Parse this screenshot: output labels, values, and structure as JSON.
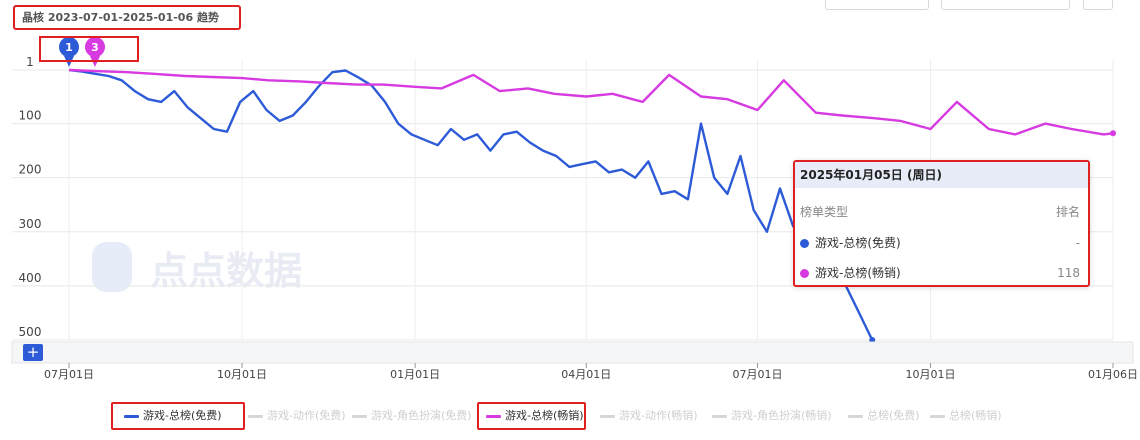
{
  "page": {
    "title": "晶核 2023-07-01-2025-01-06 趋势"
  },
  "watermark": {
    "text": "点点数据"
  },
  "markers": [
    {
      "label": "1",
      "color": "#2d5bd7"
    },
    {
      "label": "3",
      "color": "#d63ae0"
    }
  ],
  "colors": {
    "free": "#2d5bd7",
    "grossing": "#d63ae0",
    "inactive": "#d6d6d6"
  },
  "toolbar": {
    "add_label": "+"
  },
  "legend": [
    {
      "label": "游戏-总榜(免费)",
      "active": true,
      "color": "#2d5bd7"
    },
    {
      "label": "游戏-动作(免费)",
      "active": false
    },
    {
      "label": "游戏-角色扮演(免费)",
      "active": false
    },
    {
      "label": "游戏-总榜(畅销)",
      "active": true,
      "color": "#d63ae0"
    },
    {
      "label": "游戏-动作(畅销)",
      "active": false
    },
    {
      "label": "游戏-角色扮演(畅销)",
      "active": false
    },
    {
      "label": "总榜(免费)",
      "active": false
    },
    {
      "label": "总榜(畅销)",
      "active": false
    }
  ],
  "tooltip": {
    "date": "2025年01月05日 (周日)",
    "col_type": "榜单类型",
    "col_rank": "排名",
    "rows": [
      {
        "label": "游戏-总榜(免费)",
        "value": "-",
        "color": "#2d5bd7"
      },
      {
        "label": "游戏-总榜(畅销)",
        "value": "118",
        "color": "#d63ae0"
      }
    ]
  },
  "chart_data": {
    "type": "line",
    "title": "晶核 2023-07-01-2025-01-06 趋势",
    "x_range": [
      "2023-07-01",
      "2025-01-06"
    ],
    "x_tick_labels": [
      "07月01日",
      "10月01日",
      "01月01日",
      "04月01日",
      "07月01日",
      "10月01日",
      "01月06日"
    ],
    "x_tick_dates": [
      "2023-07-01",
      "2023-10-01",
      "2024-01-01",
      "2024-04-01",
      "2024-07-01",
      "2024-10-01",
      "2025-01-06"
    ],
    "y_tick_labels": [
      "1",
      "100",
      "200",
      "300",
      "400",
      "500"
    ],
    "y_ticks": [
      1,
      100,
      200,
      300,
      400,
      500
    ],
    "ylim": [
      1,
      500
    ],
    "y_inverted": true,
    "grid": true,
    "legend_position": "bottom",
    "series": [
      {
        "name": "游戏-总榜(免费)",
        "color": "#2d5bd7",
        "points": [
          [
            "2023-07-01",
            1
          ],
          [
            "2023-07-08",
            4
          ],
          [
            "2023-07-15",
            8
          ],
          [
            "2023-07-22",
            12
          ],
          [
            "2023-07-29",
            20
          ],
          [
            "2023-08-05",
            40
          ],
          [
            "2023-08-12",
            55
          ],
          [
            "2023-08-19",
            60
          ],
          [
            "2023-08-26",
            40
          ],
          [
            "2023-09-02",
            70
          ],
          [
            "2023-09-09",
            90
          ],
          [
            "2023-09-16",
            110
          ],
          [
            "2023-09-23",
            115
          ],
          [
            "2023-09-30",
            60
          ],
          [
            "2023-10-07",
            40
          ],
          [
            "2023-10-14",
            75
          ],
          [
            "2023-10-21",
            95
          ],
          [
            "2023-10-28",
            85
          ],
          [
            "2023-11-04",
            60
          ],
          [
            "2023-11-11",
            30
          ],
          [
            "2023-11-18",
            5
          ],
          [
            "2023-11-25",
            2
          ],
          [
            "2023-12-02",
            15
          ],
          [
            "2023-12-09",
            30
          ],
          [
            "2023-12-16",
            60
          ],
          [
            "2023-12-23",
            100
          ],
          [
            "2023-12-30",
            120
          ],
          [
            "2024-01-06",
            130
          ],
          [
            "2024-01-13",
            140
          ],
          [
            "2024-01-20",
            110
          ],
          [
            "2024-01-27",
            130
          ],
          [
            "2024-02-03",
            120
          ],
          [
            "2024-02-10",
            150
          ],
          [
            "2024-02-17",
            120
          ],
          [
            "2024-02-24",
            115
          ],
          [
            "2024-03-02",
            135
          ],
          [
            "2024-03-09",
            150
          ],
          [
            "2024-03-16",
            160
          ],
          [
            "2024-03-23",
            180
          ],
          [
            "2024-03-30",
            175
          ],
          [
            "2024-04-06",
            170
          ],
          [
            "2024-04-13",
            190
          ],
          [
            "2024-04-20",
            185
          ],
          [
            "2024-04-27",
            200
          ],
          [
            "2024-05-04",
            170
          ],
          [
            "2024-05-11",
            230
          ],
          [
            "2024-05-18",
            225
          ],
          [
            "2024-05-25",
            240
          ],
          [
            "2024-06-01",
            100
          ],
          [
            "2024-06-08",
            200
          ],
          [
            "2024-06-15",
            230
          ],
          [
            "2024-06-22",
            160
          ],
          [
            "2024-06-29",
            260
          ],
          [
            "2024-07-06",
            300
          ],
          [
            "2024-07-13",
            220
          ],
          [
            "2024-07-20",
            290
          ],
          [
            "2024-07-27",
            200
          ],
          [
            "2024-08-03",
            270
          ],
          [
            "2024-08-10",
            250
          ],
          [
            "2024-08-17",
            400
          ],
          [
            "2024-08-24",
            450
          ],
          [
            "2024-08-31",
            500
          ]
        ]
      },
      {
        "name": "游戏-总榜(畅销)",
        "color": "#d63ae0",
        "points": [
          [
            "2023-07-01",
            1
          ],
          [
            "2023-07-15",
            3
          ],
          [
            "2023-08-01",
            5
          ],
          [
            "2023-08-15",
            8
          ],
          [
            "2023-09-01",
            12
          ],
          [
            "2023-09-15",
            14
          ],
          [
            "2023-10-01",
            16
          ],
          [
            "2023-10-15",
            20
          ],
          [
            "2023-11-01",
            22
          ],
          [
            "2023-11-15",
            25
          ],
          [
            "2023-12-01",
            28
          ],
          [
            "2023-12-15",
            28
          ],
          [
            "2024-01-01",
            32
          ],
          [
            "2024-01-15",
            35
          ],
          [
            "2024-02-01",
            10
          ],
          [
            "2024-02-15",
            40
          ],
          [
            "2024-03-01",
            35
          ],
          [
            "2024-03-15",
            45
          ],
          [
            "2024-04-01",
            50
          ],
          [
            "2024-04-15",
            45
          ],
          [
            "2024-05-01",
            60
          ],
          [
            "2024-05-15",
            10
          ],
          [
            "2024-06-01",
            50
          ],
          [
            "2024-06-15",
            55
          ],
          [
            "2024-07-01",
            75
          ],
          [
            "2024-07-15",
            20
          ],
          [
            "2024-08-01",
            80
          ],
          [
            "2024-08-15",
            85
          ],
          [
            "2024-09-01",
            90
          ],
          [
            "2024-09-15",
            95
          ],
          [
            "2024-10-01",
            110
          ],
          [
            "2024-10-15",
            60
          ],
          [
            "2024-11-01",
            110
          ],
          [
            "2024-11-15",
            120
          ],
          [
            "2024-12-01",
            100
          ],
          [
            "2024-12-15",
            110
          ],
          [
            "2025-01-01",
            120
          ],
          [
            "2025-01-06",
            118
          ]
        ]
      }
    ]
  }
}
